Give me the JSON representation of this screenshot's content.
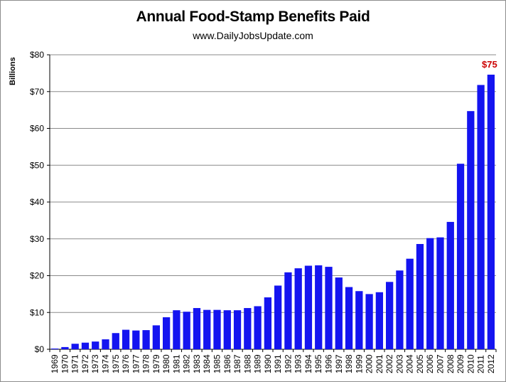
{
  "chart_data": {
    "type": "bar",
    "title": "Annual Food-Stamp Benefits Paid",
    "subtitle": "www.DailyJobsUpdate.com",
    "ylabel": "Billions",
    "xlabel": "",
    "ylim": [
      0,
      80
    ],
    "yticks": [
      0,
      10,
      20,
      30,
      40,
      50,
      60,
      70,
      80
    ],
    "ytick_labels": [
      "$0",
      "$10",
      "$20",
      "$30",
      "$40",
      "$50",
      "$60",
      "$70",
      "$80"
    ],
    "grid": true,
    "legend": "none",
    "bar_color": "#1414f0",
    "annotation": {
      "category": "2012",
      "text": "$75",
      "color": "#cc0000"
    },
    "categories": [
      "1969",
      "1970",
      "1971",
      "1972",
      "1973",
      "1974",
      "1975",
      "1976",
      "1977",
      "1978",
      "1979",
      "1980",
      "1981",
      "1982",
      "1983",
      "1984",
      "1985",
      "1986",
      "1987",
      "1988",
      "1989",
      "1990",
      "1991",
      "1992",
      "1993",
      "1994",
      "1995",
      "1996",
      "1997",
      "1998",
      "1999",
      "2000",
      "2001",
      "2002",
      "2003",
      "2004",
      "2005",
      "2006",
      "2007",
      "2008",
      "2009",
      "2010",
      "2011",
      "2012"
    ],
    "values": [
      0.2,
      0.6,
      1.5,
      1.8,
      2.1,
      2.7,
      4.4,
      5.3,
      5.1,
      5.2,
      6.5,
      8.7,
      10.6,
      10.2,
      11.2,
      10.7,
      10.7,
      10.6,
      10.6,
      11.2,
      11.7,
      14.1,
      17.3,
      20.9,
      22.0,
      22.7,
      22.8,
      22.4,
      19.5,
      16.9,
      15.8,
      15.0,
      15.5,
      18.3,
      21.4,
      24.6,
      28.6,
      30.2,
      30.4,
      34.6,
      50.4,
      64.7,
      71.8,
      74.6
    ]
  }
}
